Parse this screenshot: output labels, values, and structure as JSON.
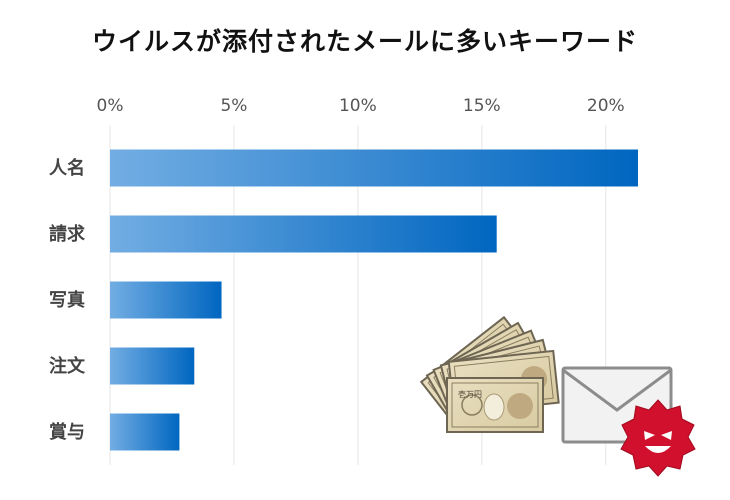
{
  "chart_data": {
    "type": "bar",
    "orientation": "horizontal",
    "title": "ウイルスが添付されたメールに多いキーワード",
    "categories": [
      "人名",
      "請求",
      "写真",
      "注文",
      "賞与"
    ],
    "values": [
      21.3,
      15.6,
      4.5,
      3.4,
      2.8
    ],
    "xlim": [
      0,
      21.3
    ],
    "x_ticks": [
      0,
      5,
      10,
      15,
      20
    ],
    "x_tick_labels": [
      "0%",
      "5%",
      "10%",
      "15%",
      "20%"
    ],
    "x_axis_position": "top",
    "grid": true,
    "bar_colors": {
      "start": "#72ADE3",
      "end": "#0066C0"
    },
    "illustration": {
      "description_icons": [
        "banknotes-icon",
        "envelope-icon",
        "virus-icon"
      ],
      "banknote_label": "壱万円"
    }
  }
}
